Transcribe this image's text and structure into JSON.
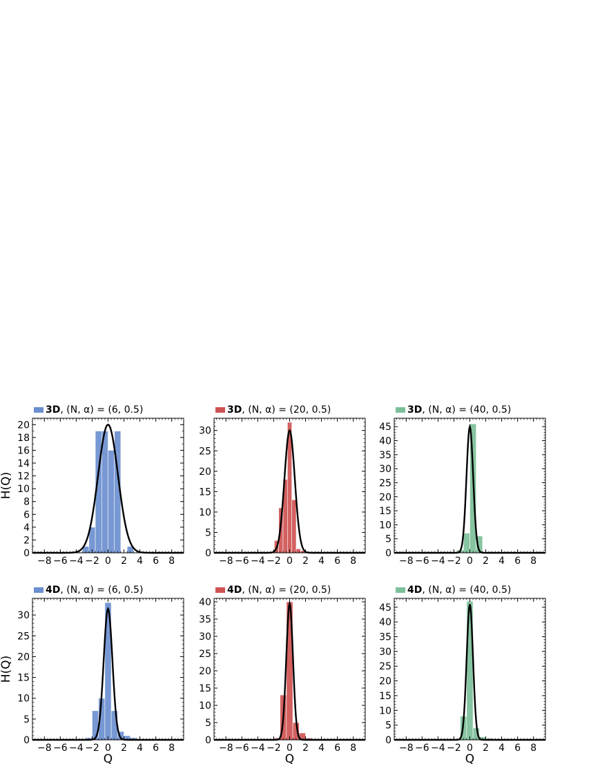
{
  "chart_data": [
    {
      "type": "bar",
      "title_bold": "3D",
      "title_rest": ", (N, α) = (6, 0.5)",
      "legend_color": "#6b8fcf",
      "xlabel": "",
      "ylabel": "H(Q)",
      "xlim": [
        -9.5,
        9.5
      ],
      "ylim": [
        0,
        21
      ],
      "xticks": [
        -8,
        -6,
        -4,
        -2,
        0,
        2,
        4,
        6,
        8
      ],
      "xtick_labels": [
        "−8",
        "−6",
        "−4",
        "−2",
        "0",
        "2",
        "4",
        "6",
        "8"
      ],
      "yticks": [
        0,
        2,
        4,
        6,
        8,
        10,
        12,
        14,
        16,
        18,
        20
      ],
      "yminor": 1,
      "bin_width": 0.8,
      "bins": [
        -3.2,
        -2.4,
        -1.6,
        -0.8,
        0,
        0.8,
        1.6,
        2.4
      ],
      "values": [
        1,
        4,
        19,
        19,
        16,
        19,
        0,
        1
      ],
      "fit": {
        "amplitude": 20,
        "sigma": 1.25
      }
    },
    {
      "type": "bar",
      "title_bold": "3D",
      "title_rest": ", (N, α) = (20, 0.5)",
      "legend_color": "#cf5252",
      "xlabel": "",
      "ylabel": "",
      "xlim": [
        -9.5,
        9.5
      ],
      "ylim": [
        0,
        33
      ],
      "xticks": [
        -8,
        -6,
        -4,
        -2,
        0,
        2,
        4,
        6,
        8
      ],
      "xtick_labels": [
        "−8",
        "−6",
        "−4",
        "−2",
        "0",
        "2",
        "4",
        "6",
        "8"
      ],
      "yticks": [
        0,
        5,
        10,
        15,
        20,
        25,
        30
      ],
      "yminor": 1,
      "bin_width": 0.55,
      "bins": [
        -1.925,
        -1.375,
        -0.825,
        -0.275,
        0.275,
        0.825,
        1.375
      ],
      "values": [
        3,
        11,
        18,
        32,
        13,
        1,
        0.5
      ],
      "fit": {
        "amplitude": 30,
        "sigma": 0.65
      }
    },
    {
      "type": "bar",
      "title_bold": "3D",
      "title_rest": ", (N, α) = (40, 0.5)",
      "legend_color": "#7dbf99",
      "xlabel": "",
      "ylabel": "",
      "xlim": [
        -9.5,
        9.5
      ],
      "ylim": [
        0,
        48
      ],
      "xticks": [
        -8,
        -6,
        -4,
        -2,
        0,
        2,
        4,
        6,
        8
      ],
      "xtick_labels": [
        "−8",
        "−6",
        "−4",
        "−2",
        "0",
        "2",
        "4",
        "6",
        "8"
      ],
      "yticks": [
        0,
        5,
        10,
        15,
        20,
        25,
        30,
        35,
        40,
        45
      ],
      "yminor": 1,
      "bin_width": 0.8,
      "bins": [
        -1.6,
        -0.8,
        0,
        0.8
      ],
      "values": [
        1,
        7,
        46,
        6
      ],
      "fit": {
        "amplitude": 45,
        "sigma": 0.42
      }
    },
    {
      "type": "bar",
      "title_bold": "4D",
      "title_rest": ", (N, α) = (6, 0.5)",
      "legend_color": "#6b8fcf",
      "xlabel": "Q",
      "ylabel": "H(Q)",
      "xlim": [
        -9.5,
        9.5
      ],
      "ylim": [
        0,
        34
      ],
      "xticks": [
        -8,
        -6,
        -4,
        -2,
        0,
        2,
        4,
        6,
        8
      ],
      "xtick_labels": [
        "−8",
        "−6",
        "−4",
        "−2",
        "0",
        "2",
        "4",
        "6",
        "8"
      ],
      "yticks": [
        0,
        5,
        10,
        15,
        20,
        25,
        30
      ],
      "yminor": 1,
      "bin_width": 0.8,
      "bins": [
        -2.8,
        -2.0,
        -1.2,
        -0.4,
        0.4,
        1.2,
        2.0,
        2.8
      ],
      "values": [
        0.5,
        7,
        10,
        33,
        7,
        2,
        1,
        0.5
      ],
      "fit": {
        "amplitude": 31.5,
        "sigma": 0.55
      }
    },
    {
      "type": "bar",
      "title_bold": "4D",
      "title_rest": ", (N, α) = (20, 0.5)",
      "legend_color": "#cf5252",
      "xlabel": "Q",
      "ylabel": "",
      "xlim": [
        -9.5,
        9.5
      ],
      "ylim": [
        0,
        41
      ],
      "xticks": [
        -8,
        -6,
        -4,
        -2,
        0,
        2,
        4,
        6,
        8
      ],
      "xtick_labels": [
        "−8",
        "−6",
        "−4",
        "−2",
        "0",
        "2",
        "4",
        "6",
        "8"
      ],
      "yticks": [
        0,
        5,
        10,
        15,
        20,
        25,
        30,
        35,
        40
      ],
      "yminor": 1,
      "bin_width": 0.8,
      "bins": [
        -2.0,
        -1.2,
        -0.4,
        0.4,
        1.2,
        2.0
      ],
      "values": [
        0.5,
        13,
        40,
        5,
        2,
        0.5
      ],
      "fit": {
        "amplitude": 39.5,
        "sigma": 0.42
      }
    },
    {
      "type": "bar",
      "title_bold": "4D",
      "title_rest": ", (N, α) = (40, 0.5)",
      "legend_color": "#7dbf99",
      "xlabel": "Q",
      "ylabel": "",
      "xlim": [
        -9.5,
        9.5
      ],
      "ylim": [
        0,
        48
      ],
      "xticks": [
        -8,
        -6,
        -4,
        -2,
        0,
        2,
        4,
        6,
        8
      ],
      "xtick_labels": [
        "−8",
        "−6",
        "−4",
        "−2",
        "0",
        "2",
        "4",
        "6",
        "8"
      ],
      "yticks": [
        0,
        5,
        10,
        15,
        20,
        25,
        30,
        35,
        40,
        45
      ],
      "yminor": 1,
      "bin_width": 0.8,
      "bins": [
        -1.2,
        -0.4,
        0.4,
        1.2,
        2.0
      ],
      "values": [
        8,
        47,
        4,
        1,
        0.5
      ],
      "fit": {
        "amplitude": 46,
        "sigma": 0.4
      }
    }
  ]
}
